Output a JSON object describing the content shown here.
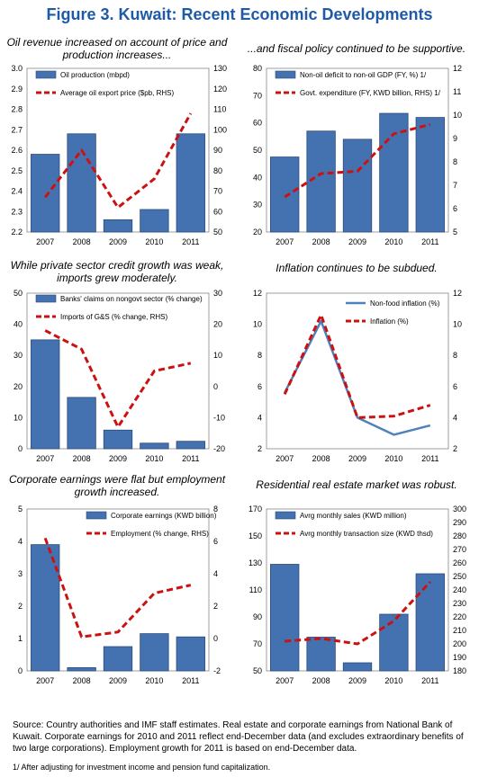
{
  "figure_title": "Figure 3. Kuwait: Recent Economic Developments",
  "panels": [
    {
      "title": "Oil revenue increased on account of price and production increases..."
    },
    {
      "title": "...and fiscal policy continued to be supportive."
    },
    {
      "title": "While private sector credit growth was weak, imports grew moderately."
    },
    {
      "title": "Inflation continues to be subdued."
    },
    {
      "title": "Corporate earnings were flat but employment growth increased."
    },
    {
      "title": "Residential real estate market was robust."
    }
  ],
  "chart_data": [
    {
      "type": "bar",
      "title": "Oil revenue increased on account of price and production increases...",
      "categories": [
        "2007",
        "2008",
        "2009",
        "2010",
        "2011"
      ],
      "series": [
        {
          "name": "Oil production (mbpd)",
          "kind": "bar",
          "axis": "left",
          "values": [
            2.58,
            2.68,
            2.26,
            2.31,
            2.68
          ]
        },
        {
          "name": "Average oil export price ($pb, RHS)",
          "kind": "line",
          "style": "dashed",
          "axis": "right",
          "values": [
            67,
            90,
            62,
            76,
            108
          ]
        }
      ],
      "ylim": [
        2.2,
        3.0
      ],
      "yticks": [
        "2.2",
        "2.3",
        "2.4",
        "2.5",
        "2.6",
        "2.7",
        "2.8",
        "2.9",
        "3.0"
      ],
      "y2lim": [
        50,
        130
      ],
      "y2ticks": [
        "50",
        "60",
        "70",
        "80",
        "90",
        "100",
        "110",
        "120",
        "130"
      ],
      "legend": "top-left"
    },
    {
      "type": "bar",
      "title": "...and fiscal policy continued to be supportive.",
      "categories": [
        "2007",
        "2008",
        "2009",
        "2010",
        "2011"
      ],
      "series": [
        {
          "name": "Non-oil deficit to non-oil GDP (FY, %) 1/",
          "kind": "bar",
          "axis": "left",
          "values": [
            47.5,
            57,
            54,
            63.5,
            62
          ]
        },
        {
          "name": "Govt. expenditure (FY, KWD billion, RHS) 1/",
          "kind": "line",
          "style": "dashed",
          "axis": "right",
          "values": [
            6.5,
            7.5,
            7.6,
            9.2,
            9.6
          ]
        }
      ],
      "ylim": [
        20,
        80
      ],
      "yticks": [
        "20",
        "30",
        "40",
        "50",
        "60",
        "70",
        "80"
      ],
      "y2lim": [
        5,
        12
      ],
      "y2ticks": [
        "5",
        "6",
        "7",
        "8",
        "9",
        "10",
        "11",
        "12"
      ],
      "legend": "top-left"
    },
    {
      "type": "bar",
      "title": "While private sector credit growth was weak, imports grew moderately.",
      "categories": [
        "2007",
        "2008",
        "2009",
        "2010",
        "2011"
      ],
      "series": [
        {
          "name": "Banks' claims on nongovt sector (% change)",
          "kind": "bar",
          "axis": "left",
          "values": [
            35,
            16.5,
            6,
            1.8,
            2.4
          ]
        },
        {
          "name": "Imports of G&S (% change, RHS)",
          "kind": "line",
          "style": "dashed",
          "axis": "right",
          "values": [
            18,
            12,
            -13,
            5,
            7.5
          ]
        }
      ],
      "ylim": [
        0,
        50
      ],
      "yticks": [
        "0",
        "10",
        "20",
        "30",
        "40",
        "50"
      ],
      "y2lim": [
        -20,
        30
      ],
      "y2ticks": [
        "-20",
        "-10",
        "0",
        "10",
        "20",
        "30"
      ],
      "legend": "top-left"
    },
    {
      "type": "line",
      "title": "Inflation continues to be subdued.",
      "categories": [
        "2007",
        "2008",
        "2009",
        "2010",
        "2011"
      ],
      "series": [
        {
          "name": "Non-food inflation (%)",
          "kind": "line",
          "style": "solid",
          "axis": "left",
          "values": [
            5.6,
            10.2,
            4.0,
            2.9,
            3.5
          ]
        },
        {
          "name": "Inflation (%)",
          "kind": "line",
          "style": "dashed",
          "axis": "left",
          "values": [
            5.5,
            10.6,
            4.0,
            4.1,
            4.8
          ]
        }
      ],
      "ylim": [
        2,
        12
      ],
      "yticks": [
        "2",
        "4",
        "6",
        "8",
        "10",
        "12"
      ],
      "y2lim": [
        2,
        12
      ],
      "y2ticks": [
        "2",
        "4",
        "6",
        "8",
        "10",
        "12"
      ],
      "legend": "top-right"
    },
    {
      "type": "bar",
      "title": "Corporate earnings were flat but employment growth increased.",
      "categories": [
        "2007",
        "2008",
        "2009",
        "2010",
        "2011"
      ],
      "series": [
        {
          "name": "Corporate earnings (KWD billion)",
          "kind": "bar",
          "axis": "left",
          "values": [
            3.9,
            0.1,
            0.75,
            1.15,
            1.05
          ]
        },
        {
          "name": "Employment (% change, RHS)",
          "kind": "line",
          "style": "dashed",
          "axis": "right",
          "values": [
            6.2,
            0.1,
            0.4,
            2.8,
            3.3
          ]
        }
      ],
      "ylim": [
        0,
        5
      ],
      "yticks": [
        "0",
        "1",
        "2",
        "3",
        "4",
        "5"
      ],
      "y2lim": [
        -2,
        8
      ],
      "y2ticks": [
        "-2",
        "0",
        "2",
        "4",
        "6",
        "8"
      ],
      "legend": "top-right"
    },
    {
      "type": "bar",
      "title": "Residential real estate market was robust.",
      "categories": [
        "2007",
        "2008",
        "2009",
        "2010",
        "2011"
      ],
      "series": [
        {
          "name": "Avrg monthly sales (KWD million)",
          "kind": "bar",
          "axis": "left",
          "values": [
            129,
            75,
            56,
            92,
            122
          ]
        },
        {
          "name": "Avrg monthly transaction size (KWD thsd)",
          "kind": "line",
          "style": "dashed",
          "axis": "right",
          "values": [
            202,
            204,
            200,
            217,
            246
          ]
        }
      ],
      "ylim": [
        50,
        170
      ],
      "yticks": [
        "50",
        "70",
        "90",
        "110",
        "130",
        "150",
        "170"
      ],
      "y2lim": [
        180,
        300
      ],
      "y2ticks": [
        "180",
        "190",
        "200",
        "210",
        "220",
        "230",
        "240",
        "250",
        "260",
        "270",
        "280",
        "290",
        "300"
      ],
      "legend": "top-left"
    }
  ],
  "source_note": "Source: Country authorities and IMF staff estimates. Real estate and corporate earnings from National Bank of Kuwait. Corporate earnings for 2010 and 2011 reflect end-December data (and excludes extraordinary benefits of two large corporations). Employment growth for 2011 is based on end-December data.",
  "footnote": "1/ After adjusting for investment income and pension fund capitalization.",
  "colors": {
    "title": "#1f5aa6",
    "bar_fill": "#4472b0",
    "bar_stroke": "#2a4a7a",
    "line_red": "#cc1111",
    "line_blue": "#4f81bd",
    "frame": "#888888"
  }
}
